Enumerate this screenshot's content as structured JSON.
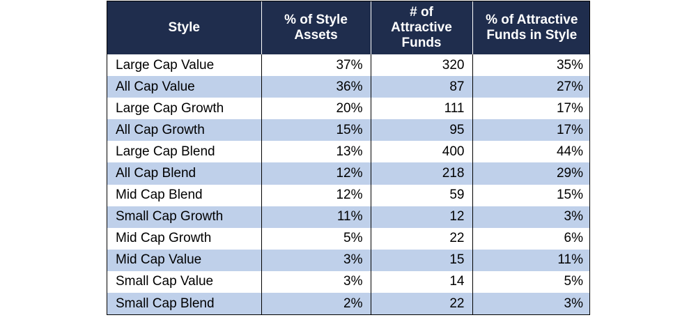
{
  "table": {
    "headers": [
      "Style",
      "% of Style\nAssets",
      "# of\nAttractive\nFunds",
      "% of Attractive\nFunds in Style"
    ],
    "rows": [
      [
        "Large Cap Value",
        "37%",
        "320",
        "35%"
      ],
      [
        "All Cap Value",
        "36%",
        "87",
        "27%"
      ],
      [
        "Large Cap Growth",
        "20%",
        "111",
        "17%"
      ],
      [
        "All Cap Growth",
        "15%",
        "95",
        "17%"
      ],
      [
        "Large Cap Blend",
        "13%",
        "400",
        "44%"
      ],
      [
        "All Cap Blend",
        "12%",
        "218",
        "29%"
      ],
      [
        "Mid Cap Blend",
        "12%",
        "59",
        "15%"
      ],
      [
        "Small Cap Growth",
        "11%",
        "12",
        "3%"
      ],
      [
        "Mid Cap Growth",
        "5%",
        "22",
        "6%"
      ],
      [
        "Mid Cap Value",
        "3%",
        "15",
        "11%"
      ],
      [
        "Small Cap Value",
        "3%",
        "14",
        "5%"
      ],
      [
        "Small Cap Blend",
        "2%",
        "22",
        "3%"
      ]
    ]
  },
  "colors": {
    "header_bg": "#1f2d4d",
    "header_text": "#ffffff",
    "stripe": "#bfd0ea",
    "row_bg": "#ffffff"
  }
}
